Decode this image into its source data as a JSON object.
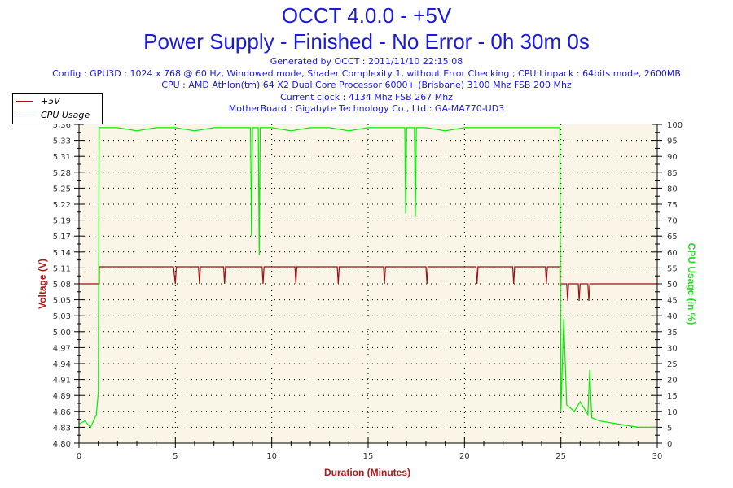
{
  "title": "OCCT 4.0.0 - +5V",
  "subtitle": "Power Supply - Finished - No Error - 0h 30m 0s",
  "info": [
    "Generated by OCCT : 2011/11/10 22:15:08",
    "Config : GPU3D : 1024 x 768 @ 60 Hz, Windowed mode, Shader Complexity 1, without Error Checking ; CPU:Linpack : 64bits mode, 2600MB",
    "CPU : AMD Athlon(tm) 64 X2 Dual Core Processor 6000+ (Brisbane) 3100 Mhz FSB 200 Mhz",
    "Current clock : 4134 Mhz FSB 267 Mhz",
    "MotherBoard : Gigabyte Technology Co., Ltd.: GA-MA770-UD3"
  ],
  "colors": {
    "voltage": "#9b1111",
    "cpu": "#00ee00",
    "background": "#faf5e6",
    "text": "#1a1adc"
  },
  "chart_data": {
    "type": "line",
    "xlabel": "Duration (Minutes)",
    "ylabel": "Voltage (V)",
    "y2label": "CPU Usage (in %)",
    "xlim": [
      0,
      30
    ],
    "ylim": [
      4.8,
      5.36
    ],
    "y2lim": [
      0,
      100
    ],
    "xticks": [
      "0",
      "5",
      "10",
      "15",
      "20",
      "25",
      "30"
    ],
    "yticks": [
      "4,80",
      "4,83",
      "4,86",
      "4,89",
      "4,91",
      "4,94",
      "4,97",
      "5,00",
      "5,03",
      "5,05",
      "5,08",
      "5,11",
      "5,14",
      "5,17",
      "5,19",
      "5,22",
      "5,25",
      "5,28",
      "5,31",
      "5,33",
      "5,36"
    ],
    "y2ticks": [
      "0",
      "5",
      "10",
      "15",
      "20",
      "25",
      "30",
      "35",
      "40",
      "45",
      "50",
      "55",
      "60",
      "65",
      "70",
      "75",
      "80",
      "85",
      "90",
      "95",
      "100"
    ],
    "legend": {
      "position": "top-left",
      "entries": [
        "+5V",
        "CPU Usage"
      ]
    },
    "grid": true,
    "series": [
      {
        "name": "+5V",
        "axis": "left",
        "points": [
          [
            0,
            5.08
          ],
          [
            1.05,
            5.08
          ],
          [
            1.05,
            5.11
          ],
          [
            4.9,
            5.11
          ],
          [
            5.0,
            5.08
          ],
          [
            5.05,
            5.11
          ],
          [
            6.2,
            5.11
          ],
          [
            6.25,
            5.08
          ],
          [
            6.3,
            5.11
          ],
          [
            7.5,
            5.11
          ],
          [
            7.55,
            5.08
          ],
          [
            7.6,
            5.11
          ],
          [
            9.5,
            5.11
          ],
          [
            9.55,
            5.08
          ],
          [
            9.6,
            5.11
          ],
          [
            11.2,
            5.11
          ],
          [
            11.25,
            5.08
          ],
          [
            11.3,
            5.11
          ],
          [
            13.4,
            5.11
          ],
          [
            13.45,
            5.08
          ],
          [
            13.5,
            5.11
          ],
          [
            15.8,
            5.11
          ],
          [
            15.85,
            5.08
          ],
          [
            15.9,
            5.11
          ],
          [
            18.0,
            5.11
          ],
          [
            18.05,
            5.08
          ],
          [
            18.1,
            5.11
          ],
          [
            20.6,
            5.11
          ],
          [
            20.65,
            5.08
          ],
          [
            20.7,
            5.11
          ],
          [
            22.5,
            5.11
          ],
          [
            22.55,
            5.08
          ],
          [
            22.6,
            5.11
          ],
          [
            24.2,
            5.11
          ],
          [
            24.25,
            5.08
          ],
          [
            24.3,
            5.11
          ],
          [
            24.95,
            5.11
          ],
          [
            24.95,
            5.08
          ],
          [
            25.3,
            5.08
          ],
          [
            25.35,
            5.05
          ],
          [
            25.4,
            5.08
          ],
          [
            25.9,
            5.08
          ],
          [
            25.95,
            5.05
          ],
          [
            26.0,
            5.08
          ],
          [
            26.4,
            5.08
          ],
          [
            26.45,
            5.05
          ],
          [
            26.5,
            5.08
          ],
          [
            30,
            5.08
          ]
        ]
      },
      {
        "name": "CPU Usage",
        "axis": "right",
        "points": [
          [
            0,
            6
          ],
          [
            0.3,
            7
          ],
          [
            0.6,
            5
          ],
          [
            0.9,
            9
          ],
          [
            1.0,
            16
          ],
          [
            1.05,
            99
          ],
          [
            2,
            99
          ],
          [
            3,
            98
          ],
          [
            4,
            99
          ],
          [
            5,
            99
          ],
          [
            6,
            98
          ],
          [
            7,
            99
          ],
          [
            8,
            99
          ],
          [
            8.9,
            99
          ],
          [
            8.95,
            65
          ],
          [
            9.0,
            99
          ],
          [
            9.3,
            99
          ],
          [
            9.35,
            59
          ],
          [
            9.4,
            99
          ],
          [
            10,
            99
          ],
          [
            11,
            98
          ],
          [
            12,
            99
          ],
          [
            13,
            99
          ],
          [
            14,
            98
          ],
          [
            15,
            99
          ],
          [
            16,
            99
          ],
          [
            16.9,
            99
          ],
          [
            16.95,
            72
          ],
          [
            17.0,
            99
          ],
          [
            17.4,
            99
          ],
          [
            17.45,
            71
          ],
          [
            17.5,
            99
          ],
          [
            18,
            99
          ],
          [
            19,
            98
          ],
          [
            20,
            99
          ],
          [
            21,
            99
          ],
          [
            22,
            99
          ],
          [
            23,
            99
          ],
          [
            24,
            99
          ],
          [
            24.95,
            99
          ],
          [
            25.0,
            10
          ],
          [
            25.15,
            39
          ],
          [
            25.3,
            12
          ],
          [
            25.7,
            10
          ],
          [
            26,
            13
          ],
          [
            26.4,
            9
          ],
          [
            26.5,
            23
          ],
          [
            26.6,
            8
          ],
          [
            27,
            7
          ],
          [
            28,
            6
          ],
          [
            29,
            5
          ],
          [
            30,
            5
          ]
        ]
      }
    ]
  }
}
